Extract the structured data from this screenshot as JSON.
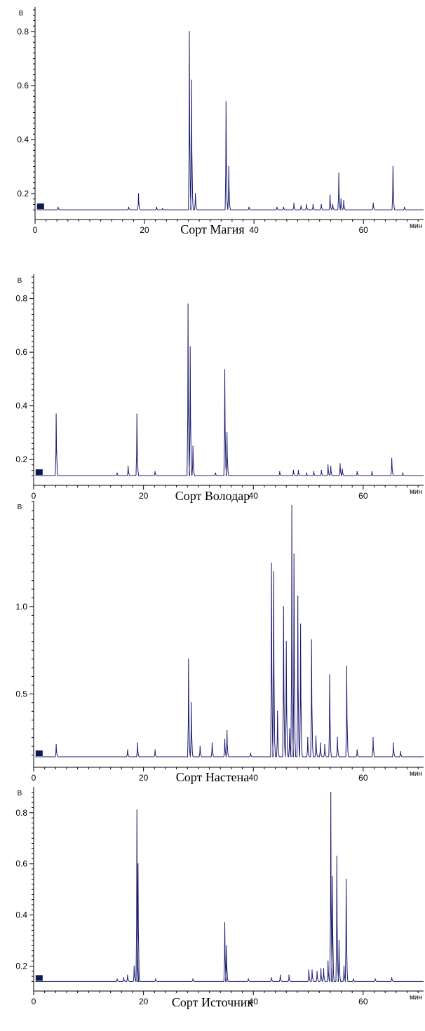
{
  "chart_data": [
    {
      "type": "line",
      "title": "Сорт Магия",
      "xlabel": "мин",
      "ylabel": "В",
      "xlim": [
        0,
        71
      ],
      "ylim": [
        0.13,
        0.88
      ],
      "xticks": [
        0,
        20,
        40,
        60
      ],
      "xtick_labels": [
        "0",
        "20",
        "40",
        "60"
      ],
      "yticks": [
        0.2,
        0.4,
        0.6,
        0.8
      ],
      "ytick_labels": [
        "0.2",
        "0.4",
        "0.6",
        "0.8"
      ],
      "baseline": 0.14,
      "series": [
        {
          "peaks": [
            [
              4.2,
              0.15
            ],
            [
              17.1,
              0.15
            ],
            [
              18.9,
              0.2
            ],
            [
              22.2,
              0.15
            ],
            [
              23.3,
              0.145
            ],
            [
              28.2,
              0.8
            ],
            [
              28.6,
              0.62
            ],
            [
              29.3,
              0.2
            ],
            [
              34.9,
              0.54
            ],
            [
              35.4,
              0.3
            ],
            [
              39.1,
              0.15
            ],
            [
              44.2,
              0.15
            ],
            [
              45.4,
              0.15
            ],
            [
              47.3,
              0.165
            ],
            [
              48.6,
              0.155
            ],
            [
              49.6,
              0.16
            ],
            [
              50.8,
              0.16
            ],
            [
              52.3,
              0.16
            ],
            [
              53.9,
              0.195
            ],
            [
              54.4,
              0.16
            ],
            [
              55.5,
              0.275
            ],
            [
              55.9,
              0.18
            ],
            [
              56.4,
              0.175
            ],
            [
              61.8,
              0.165
            ],
            [
              65.4,
              0.3
            ],
            [
              67.5,
              0.15
            ]
          ]
        }
      ]
    },
    {
      "type": "line",
      "title": "Сорт Володар",
      "xlabel": "мин",
      "ylabel": "В",
      "xlim": [
        0,
        71
      ],
      "ylim": [
        0.13,
        0.88
      ],
      "xticks": [
        0,
        20,
        40,
        60
      ],
      "xtick_labels": [
        "0",
        "20",
        "40",
        "60"
      ],
      "yticks": [
        0.2,
        0.4,
        0.6,
        0.8
      ],
      "ytick_labels": [
        "0.2",
        "0.4",
        "0.6",
        "0.8"
      ],
      "baseline": 0.14,
      "series": [
        {
          "peaks": [
            [
              4.1,
              0.37
            ],
            [
              15.2,
              0.15
            ],
            [
              17.2,
              0.175
            ],
            [
              18.8,
              0.37
            ],
            [
              22.1,
              0.155
            ],
            [
              28.1,
              0.78
            ],
            [
              28.5,
              0.62
            ],
            [
              29.0,
              0.25
            ],
            [
              33.1,
              0.15
            ],
            [
              34.8,
              0.535
            ],
            [
              35.2,
              0.3
            ],
            [
              44.8,
              0.155
            ],
            [
              47.3,
              0.16
            ],
            [
              48.2,
              0.16
            ],
            [
              49.7,
              0.15
            ],
            [
              51.0,
              0.155
            ],
            [
              52.4,
              0.16
            ],
            [
              53.6,
              0.18
            ],
            [
              54.1,
              0.175
            ],
            [
              55.8,
              0.185
            ],
            [
              56.2,
              0.165
            ],
            [
              58.9,
              0.155
            ],
            [
              61.6,
              0.155
            ],
            [
              65.2,
              0.205
            ],
            [
              67.2,
              0.15
            ]
          ]
        }
      ]
    },
    {
      "type": "line",
      "title": "Сорт Настена",
      "xlabel": "мин",
      "ylabel": "В",
      "xlim": [
        0,
        71
      ],
      "ylim": [
        0.12,
        1.59
      ],
      "xticks": [
        0,
        20,
        40,
        60
      ],
      "xtick_labels": [
        "0",
        "20",
        "40",
        "60"
      ],
      "yticks": [
        0.5,
        1.0
      ],
      "ytick_labels": [
        "0.5",
        "1.0"
      ],
      "baseline": 0.14,
      "series": [
        {
          "peaks": [
            [
              4.1,
              0.21
            ],
            [
              17.1,
              0.18
            ],
            [
              18.9,
              0.22
            ],
            [
              22.1,
              0.18
            ],
            [
              28.2,
              0.7
            ],
            [
              28.7,
              0.45
            ],
            [
              30.3,
              0.2
            ],
            [
              32.5,
              0.22
            ],
            [
              34.8,
              0.24
            ],
            [
              35.2,
              0.29
            ],
            [
              39.5,
              0.16
            ],
            [
              43.3,
              1.25
            ],
            [
              43.7,
              1.2
            ],
            [
              44.4,
              0.4
            ],
            [
              45.5,
              1.0
            ],
            [
              46.0,
              0.8
            ],
            [
              46.6,
              0.3
            ],
            [
              47.0,
              1.58
            ],
            [
              47.4,
              1.3
            ],
            [
              48.1,
              1.06
            ],
            [
              48.6,
              0.9
            ],
            [
              49.9,
              0.25
            ],
            [
              50.6,
              0.81
            ],
            [
              51.4,
              0.26
            ],
            [
              52.2,
              0.22
            ],
            [
              53.0,
              0.21
            ],
            [
              53.9,
              0.61
            ],
            [
              55.3,
              0.25
            ],
            [
              57.0,
              0.66
            ],
            [
              58.9,
              0.18
            ],
            [
              61.8,
              0.25
            ],
            [
              65.5,
              0.22
            ],
            [
              66.8,
              0.17
            ]
          ]
        }
      ]
    },
    {
      "type": "line",
      "title": "Сорт Источник",
      "xlabel": "мин",
      "ylabel": "В",
      "xlim": [
        0,
        71
      ],
      "ylim": [
        0.13,
        0.89
      ],
      "xticks": [
        0,
        20,
        40,
        60
      ],
      "xtick_labels": [
        "0",
        "20",
        "40",
        "60"
      ],
      "yticks": [
        0.2,
        0.4,
        0.6,
        0.8
      ],
      "ytick_labels": [
        "0.2",
        "0.4",
        "0.6",
        "0.8"
      ],
      "baseline": 0.14,
      "series": [
        {
          "peaks": [
            [
              15.2,
              0.15
            ],
            [
              16.4,
              0.155
            ],
            [
              17.1,
              0.165
            ],
            [
              18.3,
              0.2
            ],
            [
              18.8,
              0.81
            ],
            [
              19.0,
              0.6
            ],
            [
              22.2,
              0.15
            ],
            [
              29.0,
              0.15
            ],
            [
              34.8,
              0.37
            ],
            [
              35.1,
              0.28
            ],
            [
              39.1,
              0.15
            ],
            [
              43.3,
              0.155
            ],
            [
              44.9,
              0.165
            ],
            [
              46.5,
              0.165
            ],
            [
              50.1,
              0.185
            ],
            [
              50.7,
              0.185
            ],
            [
              51.6,
              0.18
            ],
            [
              52.3,
              0.19
            ],
            [
              52.8,
              0.19
            ],
            [
              53.6,
              0.22
            ],
            [
              54.1,
              0.88
            ],
            [
              54.4,
              0.55
            ],
            [
              55.2,
              0.63
            ],
            [
              55.6,
              0.3
            ],
            [
              56.5,
              0.2
            ],
            [
              56.9,
              0.54
            ],
            [
              58.2,
              0.15
            ],
            [
              62.2,
              0.15
            ],
            [
              65.2,
              0.155
            ]
          ]
        }
      ]
    }
  ]
}
